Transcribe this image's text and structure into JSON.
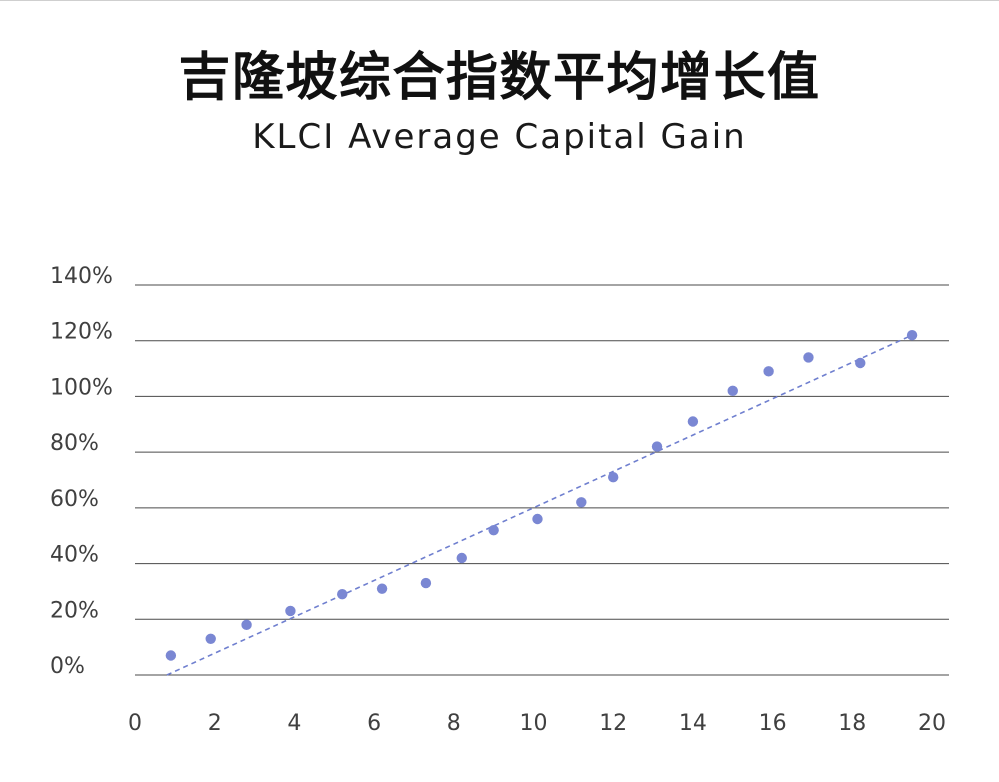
{
  "chart_data": {
    "type": "scatter",
    "title": "吉隆坡综合指数平均增长值",
    "subtitle": "KLCI Average Capital Gain",
    "xlim": [
      0,
      20
    ],
    "ylim": [
      0,
      140
    ],
    "grid": "horizontal",
    "grid_color": "#4a4a4a",
    "x_ticks": [
      {
        "value": 0,
        "label": "0"
      },
      {
        "value": 2,
        "label": "2"
      },
      {
        "value": 4,
        "label": "4"
      },
      {
        "value": 6,
        "label": "6"
      },
      {
        "value": 8,
        "label": "8"
      },
      {
        "value": 10,
        "label": "10"
      },
      {
        "value": 12,
        "label": "12"
      },
      {
        "value": 14,
        "label": "14"
      },
      {
        "value": 16,
        "label": "16"
      },
      {
        "value": 18,
        "label": "18"
      },
      {
        "value": 20,
        "label": "20"
      }
    ],
    "y_ticks": [
      {
        "value": 0,
        "label": "0%"
      },
      {
        "value": 20,
        "label": "20%"
      },
      {
        "value": 40,
        "label": "40%"
      },
      {
        "value": 60,
        "label": "60%"
      },
      {
        "value": 80,
        "label": "80%"
      },
      {
        "value": 100,
        "label": "100%"
      },
      {
        "value": 120,
        "label": "120%"
      },
      {
        "value": 140,
        "label": "140%"
      }
    ],
    "series": [
      {
        "color": "#7a87d3",
        "points": [
          {
            "x": 0.9,
            "y": 7
          },
          {
            "x": 1.9,
            "y": 13
          },
          {
            "x": 2.8,
            "y": 18
          },
          {
            "x": 3.9,
            "y": 23
          },
          {
            "x": 5.2,
            "y": 29
          },
          {
            "x": 6.2,
            "y": 31
          },
          {
            "x": 7.3,
            "y": 33
          },
          {
            "x": 8.2,
            "y": 42
          },
          {
            "x": 9.0,
            "y": 52
          },
          {
            "x": 10.1,
            "y": 56
          },
          {
            "x": 11.2,
            "y": 62
          },
          {
            "x": 12.0,
            "y": 71
          },
          {
            "x": 13.1,
            "y": 82
          },
          {
            "x": 14.0,
            "y": 91
          },
          {
            "x": 15.0,
            "y": 102
          },
          {
            "x": 15.9,
            "y": 109
          },
          {
            "x": 16.9,
            "y": 114
          },
          {
            "x": 18.2,
            "y": 112
          },
          {
            "x": 19.5,
            "y": 122
          }
        ]
      }
    ],
    "trendline": {
      "style": "dashed",
      "color": "#6f7fcf",
      "points": [
        {
          "x": 0.8,
          "y": 0
        },
        {
          "x": 19.5,
          "y": 122
        }
      ]
    }
  }
}
